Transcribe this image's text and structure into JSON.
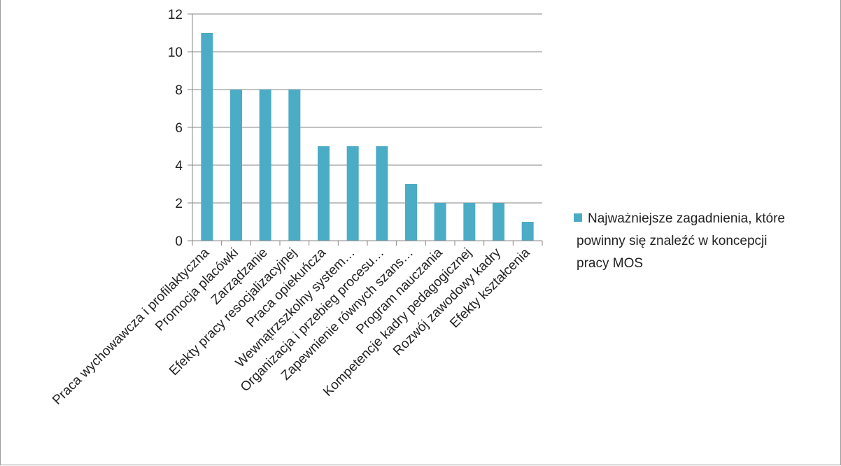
{
  "chart_data": {
    "type": "bar",
    "categories": [
      "Praca wychowawcza i profilaktyczna",
      "Promocja placówki",
      "Zarządzanie",
      "Efekty pracy resocjalizacyjnej",
      "Praca opiekuńcza",
      "Wewnątrzszkolny system…",
      "Organizacja i przebieg procesu…",
      "Zapewnienie równych szans…",
      "Program nauczania",
      "Kompetencje kadry pedagogicznej",
      "Rozwój zawodowy kadry",
      "Efekty kształcenia"
    ],
    "series": [
      {
        "name": "Najważniejsze zagadnienia, które powinny się znaleźć w koncepcji pracy MOS",
        "values": [
          11,
          8,
          8,
          8,
          5,
          5,
          5,
          3,
          2,
          2,
          2,
          1
        ]
      }
    ],
    "legend_lines": [
      "Najważniejsze zagadnienia, które",
      "powinny się znaleźć w koncepcji",
      "pracy MOS"
    ],
    "yticks": [
      "0",
      "2",
      "4",
      "6",
      "8",
      "10",
      "12"
    ],
    "ylim": [
      0,
      12
    ],
    "grid": true,
    "legend_position": "right",
    "colors": {
      "bar": "#4BACC6",
      "grid": "#868686",
      "axis": "#868686"
    }
  }
}
